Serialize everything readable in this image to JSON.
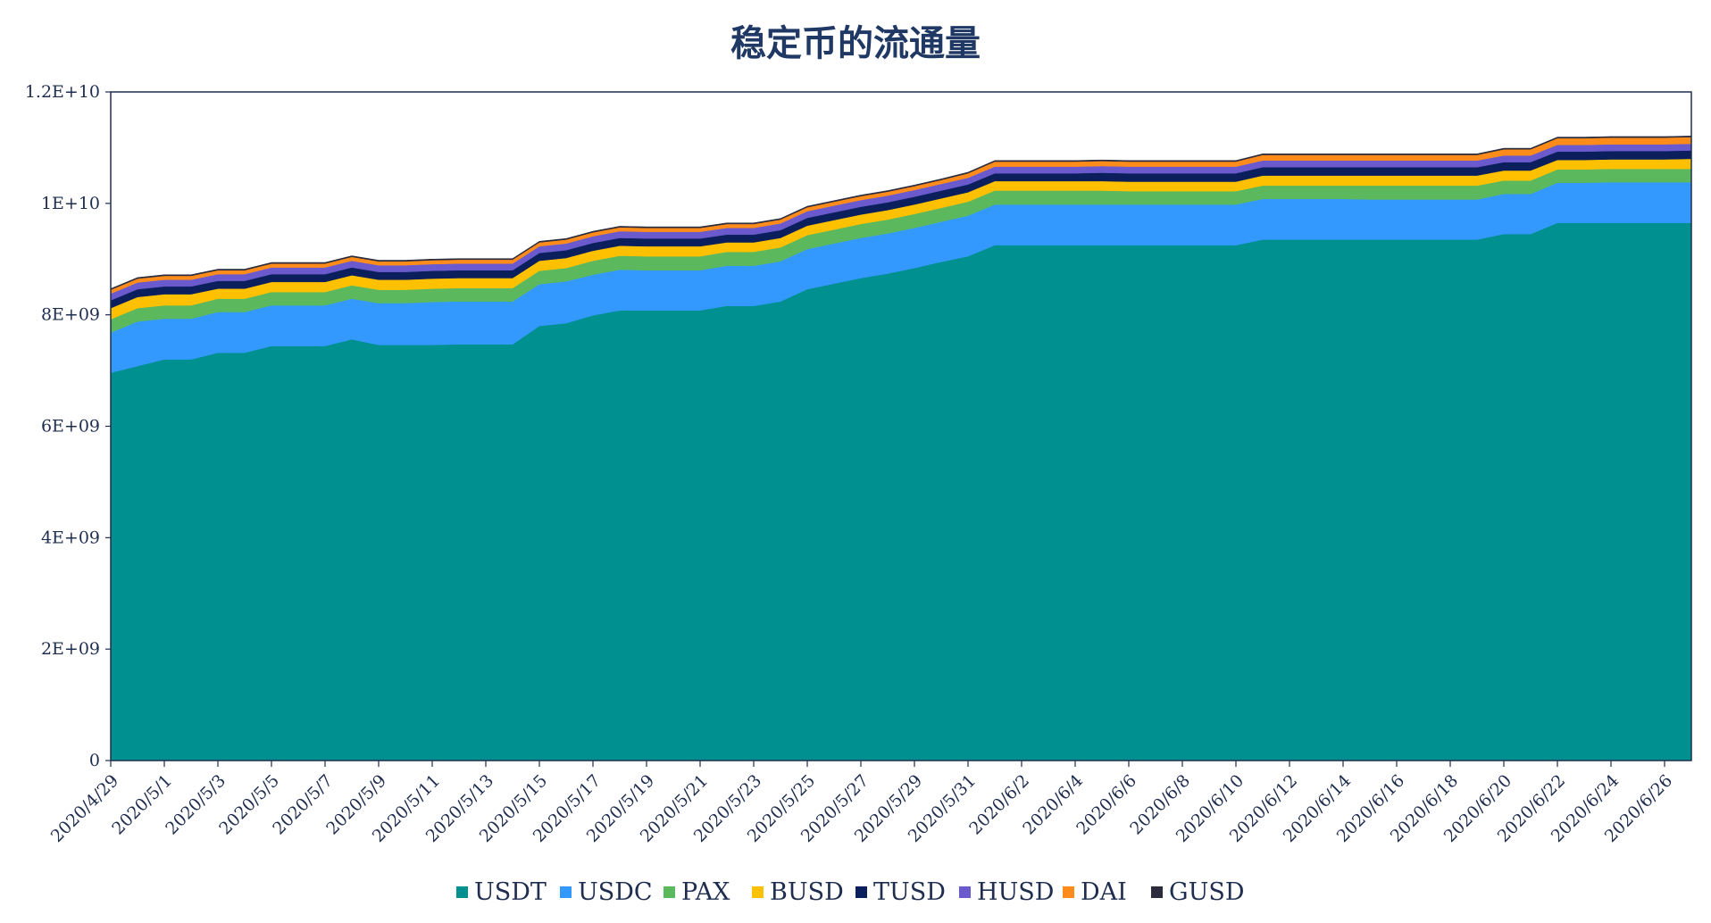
{
  "chart_data": {
    "type": "area",
    "stacked": true,
    "title": "稳定币的流通量",
    "xlabel": "",
    "ylabel": "",
    "ylim": [
      0,
      12000000000
    ],
    "y_ticks": [
      0,
      2000000000,
      4000000000,
      6000000000,
      8000000000,
      10000000000,
      12000000000
    ],
    "y_tick_labels": [
      "0",
      "2E+09",
      "4E+09",
      "6E+09",
      "8E+09",
      "1E+10",
      "1.2E+10"
    ],
    "x_tick_labels": [
      "2020/4/29",
      "2020/5/1",
      "2020/5/3",
      "2020/5/5",
      "2020/5/7",
      "2020/5/9",
      "2020/5/11",
      "2020/5/13",
      "2020/5/15",
      "2020/5/17",
      "2020/5/19",
      "2020/5/21",
      "2020/5/23",
      "2020/5/25",
      "2020/5/27",
      "2020/5/29",
      "2020/5/31",
      "2020/6/2",
      "2020/6/4",
      "2020/6/6",
      "2020/6/8",
      "2020/6/10",
      "2020/6/12",
      "2020/6/14",
      "2020/6/16",
      "2020/6/18",
      "2020/6/20",
      "2020/6/22",
      "2020/6/24",
      "2020/6/26"
    ],
    "grid": false,
    "legend_position": "bottom",
    "series": [
      {
        "name": "USDT",
        "color": "#009090",
        "values": [
          6.96,
          7.08,
          7.2,
          7.2,
          7.32,
          7.32,
          7.44,
          7.44,
          7.44,
          7.56,
          7.46,
          7.46,
          7.46,
          7.47,
          7.47,
          7.47,
          7.8,
          7.85,
          7.99,
          8.08,
          8.08,
          8.08,
          8.08,
          8.16,
          8.16,
          8.24,
          8.46,
          8.56,
          8.66,
          8.74,
          8.84,
          8.95,
          9.05,
          9.25,
          9.25,
          9.25,
          9.25,
          9.25,
          9.25,
          9.25,
          9.25,
          9.25,
          9.25,
          9.35,
          9.35,
          9.35,
          9.35,
          9.35,
          9.35,
          9.35,
          9.35,
          9.35,
          9.45,
          9.45,
          9.65,
          9.65,
          9.65,
          9.65,
          9.65,
          9.65
        ]
      },
      {
        "name": "USDC",
        "color": "#3399ff",
        "values": [
          0.72,
          0.8,
          0.73,
          0.73,
          0.73,
          0.73,
          0.73,
          0.73,
          0.73,
          0.73,
          0.75,
          0.75,
          0.77,
          0.77,
          0.77,
          0.77,
          0.75,
          0.75,
          0.73,
          0.73,
          0.72,
          0.72,
          0.72,
          0.72,
          0.72,
          0.72,
          0.72,
          0.72,
          0.72,
          0.72,
          0.72,
          0.72,
          0.73,
          0.73,
          0.73,
          0.73,
          0.73,
          0.73,
          0.73,
          0.73,
          0.73,
          0.73,
          0.73,
          0.73,
          0.73,
          0.73,
          0.73,
          0.72,
          0.72,
          0.72,
          0.72,
          0.72,
          0.72,
          0.72,
          0.72,
          0.72,
          0.73,
          0.73,
          0.73,
          0.73
        ]
      },
      {
        "name": "PAX",
        "color": "#5cb85c",
        "values": [
          0.24,
          0.24,
          0.24,
          0.24,
          0.24,
          0.24,
          0.24,
          0.24,
          0.24,
          0.24,
          0.24,
          0.24,
          0.24,
          0.24,
          0.24,
          0.24,
          0.24,
          0.24,
          0.25,
          0.25,
          0.25,
          0.25,
          0.25,
          0.25,
          0.25,
          0.25,
          0.25,
          0.25,
          0.25,
          0.25,
          0.25,
          0.25,
          0.25,
          0.25,
          0.25,
          0.25,
          0.25,
          0.25,
          0.24,
          0.24,
          0.24,
          0.24,
          0.24,
          0.24,
          0.24,
          0.24,
          0.24,
          0.25,
          0.25,
          0.25,
          0.25,
          0.25,
          0.24,
          0.24,
          0.24,
          0.24,
          0.24,
          0.24,
          0.24,
          0.24
        ]
      },
      {
        "name": "BUSD",
        "color": "#ffc000",
        "values": [
          0.2,
          0.2,
          0.2,
          0.2,
          0.18,
          0.18,
          0.18,
          0.18,
          0.18,
          0.18,
          0.18,
          0.18,
          0.18,
          0.18,
          0.18,
          0.18,
          0.18,
          0.18,
          0.18,
          0.18,
          0.18,
          0.18,
          0.18,
          0.17,
          0.17,
          0.17,
          0.17,
          0.17,
          0.17,
          0.17,
          0.17,
          0.17,
          0.17,
          0.17,
          0.17,
          0.17,
          0.17,
          0.17,
          0.17,
          0.17,
          0.17,
          0.17,
          0.17,
          0.18,
          0.18,
          0.18,
          0.18,
          0.18,
          0.18,
          0.18,
          0.18,
          0.18,
          0.18,
          0.18,
          0.17,
          0.17,
          0.17,
          0.17,
          0.17,
          0.18
        ]
      },
      {
        "name": "TUSD",
        "color": "#0a1f5c",
        "values": [
          0.14,
          0.14,
          0.14,
          0.14,
          0.14,
          0.14,
          0.14,
          0.14,
          0.14,
          0.14,
          0.14,
          0.14,
          0.14,
          0.14,
          0.14,
          0.14,
          0.14,
          0.14,
          0.14,
          0.14,
          0.14,
          0.14,
          0.14,
          0.14,
          0.14,
          0.14,
          0.14,
          0.14,
          0.14,
          0.14,
          0.14,
          0.14,
          0.14,
          0.14,
          0.14,
          0.14,
          0.14,
          0.15,
          0.15,
          0.15,
          0.15,
          0.15,
          0.15,
          0.15,
          0.15,
          0.15,
          0.15,
          0.15,
          0.15,
          0.15,
          0.15,
          0.15,
          0.15,
          0.15,
          0.15,
          0.15,
          0.15,
          0.15,
          0.15,
          0.15
        ]
      },
      {
        "name": "HUSD",
        "color": "#6a5acd",
        "values": [
          0.12,
          0.12,
          0.12,
          0.12,
          0.12,
          0.12,
          0.12,
          0.12,
          0.12,
          0.12,
          0.12,
          0.12,
          0.12,
          0.12,
          0.12,
          0.12,
          0.12,
          0.12,
          0.12,
          0.12,
          0.12,
          0.12,
          0.12,
          0.12,
          0.12,
          0.12,
          0.12,
          0.12,
          0.12,
          0.12,
          0.12,
          0.12,
          0.12,
          0.12,
          0.12,
          0.12,
          0.12,
          0.12,
          0.12,
          0.12,
          0.12,
          0.12,
          0.12,
          0.12,
          0.12,
          0.12,
          0.12,
          0.12,
          0.12,
          0.12,
          0.12,
          0.12,
          0.12,
          0.12,
          0.12,
          0.12,
          0.12,
          0.12,
          0.12,
          0.12
        ]
      },
      {
        "name": "DAI",
        "color": "#ff8c1a",
        "values": [
          0.07,
          0.07,
          0.07,
          0.07,
          0.07,
          0.07,
          0.07,
          0.07,
          0.07,
          0.07,
          0.07,
          0.07,
          0.07,
          0.07,
          0.07,
          0.07,
          0.07,
          0.07,
          0.07,
          0.07,
          0.07,
          0.07,
          0.07,
          0.07,
          0.07,
          0.07,
          0.07,
          0.07,
          0.07,
          0.07,
          0.07,
          0.07,
          0.08,
          0.09,
          0.09,
          0.09,
          0.09,
          0.09,
          0.09,
          0.09,
          0.09,
          0.09,
          0.09,
          0.1,
          0.1,
          0.1,
          0.1,
          0.1,
          0.1,
          0.1,
          0.1,
          0.1,
          0.11,
          0.11,
          0.12,
          0.12,
          0.12,
          0.12,
          0.12,
          0.12
        ]
      },
      {
        "name": "GUSD",
        "color": "#2b2b3d",
        "values": [
          0.02,
          0.02,
          0.02,
          0.02,
          0.02,
          0.02,
          0.02,
          0.02,
          0.02,
          0.02,
          0.02,
          0.02,
          0.02,
          0.02,
          0.02,
          0.02,
          0.02,
          0.02,
          0.02,
          0.02,
          0.02,
          0.02,
          0.02,
          0.02,
          0.02,
          0.02,
          0.02,
          0.02,
          0.02,
          0.02,
          0.02,
          0.02,
          0.02,
          0.02,
          0.02,
          0.02,
          0.02,
          0.02,
          0.02,
          0.02,
          0.02,
          0.02,
          0.02,
          0.02,
          0.02,
          0.02,
          0.02,
          0.02,
          0.02,
          0.02,
          0.02,
          0.02,
          0.02,
          0.02,
          0.02,
          0.02,
          0.02,
          0.02,
          0.02,
          0.02
        ]
      }
    ],
    "value_unit_note": "series values expressed in billions (×1E+09)",
    "x_start_label": "2020/4/29",
    "x_end_label": "2020/6/27"
  }
}
